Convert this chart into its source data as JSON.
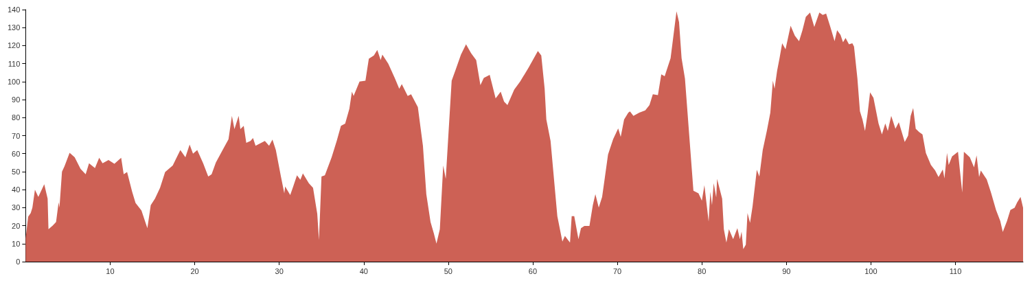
{
  "chart_data": {
    "type": "area",
    "xlim": [
      0,
      118
    ],
    "ylim": [
      0,
      140
    ],
    "xticks": [
      10,
      20,
      30,
      40,
      50,
      60,
      70,
      80,
      90,
      100,
      110
    ],
    "yticks": [
      0,
      10,
      20,
      30,
      40,
      50,
      60,
      70,
      80,
      90,
      100,
      110,
      120,
      130,
      140
    ],
    "grid": false,
    "marker": "none",
    "series": [
      {
        "color": "#cd6155",
        "x": [
          0,
          0.3,
          0.6,
          0.8,
          1.1,
          1.5,
          2.2,
          2.6,
          2.7,
          3.2,
          3.6,
          3.9,
          4.0,
          4.3,
          4.6,
          5.2,
          5.8,
          6.5,
          7.1,
          7.5,
          8.2,
          8.7,
          9.1,
          9.8,
          10.5,
          11.3,
          11.6,
          12.0,
          12.6,
          13.0,
          13.7,
          14.4,
          14.8,
          15.3,
          15.9,
          16.5,
          17.4,
          18.3,
          18.9,
          19.4,
          19.8,
          20.3,
          21.0,
          21.6,
          22.0,
          22.5,
          23.3,
          24.0,
          24.4,
          24.7,
          25.2,
          25.4,
          25.8,
          26.1,
          26.6,
          26.9,
          27.2,
          28.3,
          28.8,
          29.2,
          29.6,
          30.2,
          30.6,
          30.7,
          31.3,
          31.6,
          32.1,
          32.5,
          32.8,
          33.5,
          34.0,
          34.5,
          34.7,
          35.0,
          35.4,
          36.2,
          36.8,
          37.3,
          37.8,
          38.3,
          38.6,
          38.8,
          39.5,
          40.2,
          40.6,
          41.2,
          41.6,
          42.0,
          42.2,
          42.9,
          43.7,
          44.2,
          44.5,
          45.2,
          45.6,
          46.4,
          47.0,
          47.4,
          47.9,
          48.3,
          48.6,
          49.0,
          49.4,
          49.7,
          50.4,
          50.9,
          51.5,
          52.1,
          52.7,
          53.3,
          53.8,
          54.2,
          54.9,
          55.6,
          56.2,
          56.6,
          57.0,
          57.8,
          58.5,
          59.5,
          60.6,
          61.0,
          61.4,
          61.6,
          62.1,
          62.9,
          63.5,
          63.8,
          64.4,
          64.6,
          64.9,
          65.4,
          65.7,
          66.1,
          66.7,
          67.1,
          67.4,
          67.8,
          68.2,
          68.5,
          68.9,
          69.5,
          70.1,
          70.4,
          70.8,
          71.3,
          71.5,
          71.9,
          72.6,
          73.3,
          73.8,
          74.2,
          74.8,
          75.2,
          75.6,
          76.3,
          77.0,
          77.3,
          77.6,
          78.0,
          78.5,
          79.0,
          79.6,
          80.0,
          80.3,
          80.8,
          81.0,
          81.2,
          81.4,
          81.7,
          81.8,
          82.4,
          82.6,
          82.9,
          83.2,
          83.7,
          84.2,
          84.5,
          84.7,
          84.9,
          85.2,
          85.4,
          85.7,
          86.0,
          86.5,
          86.8,
          87.2,
          87.7,
          88.1,
          88.4,
          88.6,
          88.9,
          89.2,
          89.5,
          89.9,
          90.5,
          91.0,
          91.5,
          91.9,
          92.3,
          92.8,
          93.3,
          93.9,
          94.3,
          94.7,
          95.2,
          95.7,
          96.0,
          96.4,
          96.7,
          97.0,
          97.4,
          97.8,
          98.0,
          98.4,
          98.7,
          99.0,
          99.3,
          99.6,
          99.9,
          100.3,
          100.9,
          101.3,
          101.7,
          102.0,
          102.4,
          102.9,
          103.3,
          104.0,
          104.4,
          104.7,
          105.0,
          105.3,
          105.7,
          106.1,
          106.5,
          107.1,
          107.6,
          108.0,
          108.5,
          108.7,
          109.0,
          109.2,
          109.6,
          110.3,
          110.8,
          111.0,
          111.7,
          112.2,
          112.5,
          112.8,
          113.0,
          113.7,
          114.2,
          114.8,
          115.3,
          115.6,
          116.1,
          116.5,
          117.0,
          117.3,
          117.7,
          118.0
        ],
        "values": [
          13,
          25,
          27,
          30,
          40,
          36,
          43,
          35,
          18,
          20,
          22,
          33,
          30,
          50,
          53,
          60.5,
          58,
          51.5,
          48.5,
          54.6,
          52,
          57.7,
          54.6,
          56.5,
          54.4,
          57.7,
          48.5,
          49.8,
          38.8,
          32.6,
          28.4,
          18.6,
          31.4,
          35,
          41,
          49.8,
          53.4,
          62,
          58,
          65,
          60,
          62,
          54.6,
          47.3,
          48.5,
          55,
          62,
          68,
          81,
          73.6,
          81,
          73.6,
          75.4,
          66,
          67,
          68.7,
          64.4,
          67,
          64.4,
          67.8,
          62,
          47.3,
          38,
          41.8,
          37,
          41,
          48,
          45.5,
          49,
          43.6,
          41,
          26.5,
          12,
          47.3,
          48,
          58,
          67,
          75.4,
          76.7,
          85,
          94.4,
          92,
          100,
          100.5,
          112.7,
          114.5,
          117.6,
          112,
          115,
          110,
          101.7,
          96,
          98.6,
          92,
          93,
          85.8,
          64.4,
          37.5,
          22,
          15.5,
          10,
          18,
          53.4,
          46,
          100.5,
          107,
          115,
          120.7,
          115.8,
          112,
          98,
          102,
          103.8,
          90.7,
          94.4,
          88.9,
          87,
          95.6,
          100,
          107.8,
          117,
          114.5,
          96,
          79,
          67,
          25.3,
          11.2,
          14.3,
          10.6,
          25.3,
          25.3,
          12.5,
          18.6,
          19.8,
          19.8,
          31.4,
          37.5,
          30,
          36,
          46,
          59.5,
          68,
          74,
          69.3,
          79,
          82.8,
          83.4,
          81,
          82.8,
          84,
          87,
          93,
          92.5,
          104,
          103,
          113,
          139,
          133,
          113,
          101.7,
          70.5,
          39.4,
          38,
          33.9,
          42.4,
          22.2,
          38.8,
          31.4,
          43.6,
          35.7,
          46,
          35,
          18,
          10.6,
          18,
          12.5,
          18.6,
          12.5,
          16.7,
          7,
          9.4,
          27,
          21.6,
          30.8,
          51,
          47.3,
          62,
          73,
          82.8,
          100.5,
          96,
          106,
          113.3,
          121.3,
          118,
          131,
          125.5,
          122.5,
          128.6,
          136,
          138.4,
          130.4,
          138.4,
          137,
          137.8,
          130.4,
          122.5,
          128.6,
          126,
          121.9,
          124.3,
          120.7,
          121.3,
          119.5,
          101.8,
          83.5,
          79,
          72.6,
          82,
          94,
          91,
          76.8,
          70.7,
          76.8,
          72.6,
          81,
          73.8,
          77.4,
          66.5,
          70,
          81,
          85.4,
          73.8,
          72,
          70.7,
          60.4,
          53.7,
          50.6,
          47,
          51.2,
          46.3,
          60.4,
          53.7,
          58.5,
          61,
          38.4,
          61,
          58,
          52.4,
          59,
          47,
          50.6,
          45.7,
          38.4,
          28.7,
          22.6,
          16.5,
          22.6,
          28.7,
          29.9,
          32.9,
          36,
          29.9
        ]
      }
    ]
  }
}
